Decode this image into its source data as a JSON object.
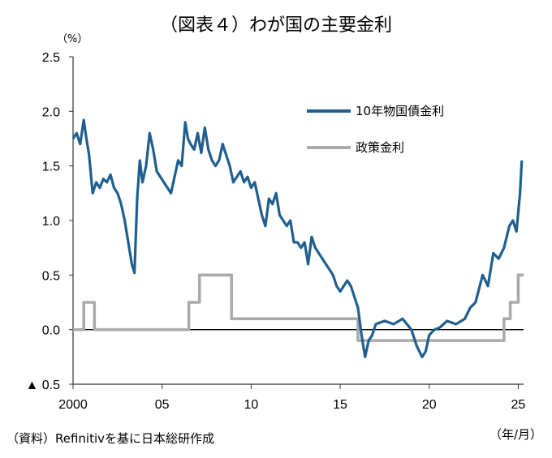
{
  "chart_data": {
    "type": "line",
    "title": "（図表４）わが国の主要金利",
    "y_unit": "（%）",
    "x_unit": "（年/月）",
    "source": "（資料）Refinitivを基に日本総研作成",
    "ylim": [
      -0.5,
      2.5
    ],
    "y_ticks": [
      2.5,
      2.0,
      1.5,
      1.0,
      0.5,
      0.0,
      -0.5
    ],
    "y_tick_labels": [
      "2.5",
      "2.0",
      "1.5",
      "1.0",
      "0.5",
      "0.0",
      "▲ 0.5"
    ],
    "xlim": [
      2000,
      2025.3
    ],
    "x_ticks": [
      2000,
      2005,
      2010,
      2015,
      2020,
      2025
    ],
    "x_tick_labels": [
      "2000",
      "05",
      "10",
      "15",
      "20",
      "25"
    ],
    "legend_position": "top-right",
    "series": [
      {
        "name": "10年物国債金利",
        "color": "#1f5f8f",
        "x": [
          2000.0,
          2000.2,
          2000.4,
          2000.6,
          2000.75,
          2000.9,
          2001.1,
          2001.3,
          2001.5,
          2001.7,
          2001.9,
          2002.1,
          2002.3,
          2002.5,
          2002.7,
          2002.9,
          2003.1,
          2003.3,
          2003.45,
          2003.6,
          2003.75,
          2003.9,
          2004.1,
          2004.3,
          2004.5,
          2004.7,
          2004.9,
          2005.1,
          2005.3,
          2005.5,
          2005.7,
          2005.9,
          2006.1,
          2006.3,
          2006.45,
          2006.6,
          2006.8,
          2007.0,
          2007.2,
          2007.4,
          2007.6,
          2007.8,
          2008.0,
          2008.2,
          2008.4,
          2008.6,
          2008.8,
          2009.0,
          2009.2,
          2009.4,
          2009.6,
          2009.8,
          2010.0,
          2010.2,
          2010.4,
          2010.6,
          2010.8,
          2011.0,
          2011.2,
          2011.4,
          2011.6,
          2011.8,
          2012.0,
          2012.2,
          2012.4,
          2012.6,
          2012.8,
          2013.0,
          2013.2,
          2013.4,
          2013.6,
          2013.8,
          2014.0,
          2014.2,
          2014.4,
          2014.6,
          2014.8,
          2015.0,
          2015.2,
          2015.4,
          2015.6,
          2015.8,
          2016.0,
          2016.2,
          2016.4,
          2016.6,
          2016.8,
          2017.0,
          2017.5,
          2018.0,
          2018.5,
          2019.0,
          2019.3,
          2019.6,
          2019.8,
          2020.0,
          2020.3,
          2020.6,
          2021.0,
          2021.5,
          2022.0,
          2022.3,
          2022.6,
          2023.0,
          2023.3,
          2023.6,
          2023.9,
          2024.2,
          2024.5,
          2024.7,
          2024.9,
          2025.1,
          2025.2
        ],
        "values": [
          1.75,
          1.8,
          1.7,
          1.92,
          1.75,
          1.6,
          1.25,
          1.35,
          1.3,
          1.38,
          1.35,
          1.42,
          1.3,
          1.25,
          1.15,
          1.0,
          0.8,
          0.6,
          0.52,
          1.2,
          1.55,
          1.35,
          1.5,
          1.8,
          1.65,
          1.45,
          1.4,
          1.35,
          1.3,
          1.25,
          1.4,
          1.55,
          1.5,
          1.9,
          1.75,
          1.7,
          1.65,
          1.8,
          1.62,
          1.85,
          1.65,
          1.55,
          1.5,
          1.55,
          1.7,
          1.6,
          1.5,
          1.35,
          1.4,
          1.45,
          1.35,
          1.4,
          1.3,
          1.35,
          1.2,
          1.05,
          0.95,
          1.2,
          1.15,
          1.25,
          1.05,
          1.0,
          0.95,
          1.0,
          0.8,
          0.8,
          0.75,
          0.8,
          0.6,
          0.85,
          0.75,
          0.7,
          0.65,
          0.6,
          0.55,
          0.5,
          0.4,
          0.35,
          0.4,
          0.45,
          0.4,
          0.3,
          0.2,
          -0.05,
          -0.25,
          -0.1,
          -0.05,
          0.05,
          0.08,
          0.05,
          0.1,
          0.0,
          -0.15,
          -0.25,
          -0.2,
          -0.05,
          0.0,
          0.02,
          0.08,
          0.05,
          0.1,
          0.2,
          0.25,
          0.5,
          0.4,
          0.7,
          0.65,
          0.75,
          0.95,
          1.0,
          0.9,
          1.25,
          1.55
        ]
      },
      {
        "name": "政策金利",
        "color": "#aaaaaa",
        "x": [
          2000.0,
          2000.6,
          2000.6,
          2001.2,
          2001.2,
          2006.5,
          2006.5,
          2007.1,
          2007.1,
          2008.9,
          2008.9,
          2016.0,
          2016.0,
          2024.2,
          2024.2,
          2024.55,
          2024.55,
          2025.0,
          2025.0,
          2025.3
        ],
        "values": [
          0.0,
          0.0,
          0.25,
          0.25,
          0.0,
          0.0,
          0.25,
          0.25,
          0.5,
          0.5,
          0.1,
          0.1,
          -0.1,
          -0.1,
          0.1,
          0.1,
          0.25,
          0.25,
          0.5,
          0.5
        ]
      }
    ]
  }
}
